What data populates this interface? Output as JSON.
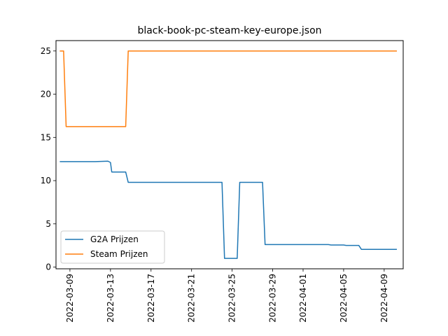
{
  "chart_data": {
    "type": "line",
    "title": "black-book-pc-steam-key-europe.json",
    "xlabel": "",
    "ylabel": "",
    "x_type": "date",
    "xlim": [
      "2022-03-07T15:00",
      "2022-04-10T21:00"
    ],
    "ylim": [
      -0.2,
      26.2
    ],
    "x_ticks": [
      "2022-03-09",
      "2022-03-13",
      "2022-03-17",
      "2022-03-21",
      "2022-03-25",
      "2022-03-29",
      "2022-04-01",
      "2022-04-05",
      "2022-04-09"
    ],
    "y_ticks": [
      0,
      5,
      10,
      15,
      20,
      25
    ],
    "grid": false,
    "legend_position": "lower-left",
    "series": [
      {
        "name": "G2A Prijzen",
        "color": "#1f77b4",
        "points": [
          [
            "2022-03-08T00:00",
            12.2
          ],
          [
            "2022-03-11T12:00",
            12.2
          ],
          [
            "2022-03-12T18:00",
            12.25
          ],
          [
            "2022-03-13T00:00",
            12.1
          ],
          [
            "2022-03-13T03:00",
            11.0
          ],
          [
            "2022-03-14T12:00",
            11.0
          ],
          [
            "2022-03-14T18:00",
            9.8
          ],
          [
            "2022-03-24T00:00",
            9.8
          ],
          [
            "2022-03-24T06:00",
            1.0
          ],
          [
            "2022-03-25T12:00",
            1.0
          ],
          [
            "2022-03-25T18:00",
            9.8
          ],
          [
            "2022-03-28T00:00",
            9.8
          ],
          [
            "2022-03-28T06:00",
            2.6
          ],
          [
            "2022-04-03T12:00",
            2.6
          ],
          [
            "2022-04-03T18:00",
            2.55
          ],
          [
            "2022-04-05T00:00",
            2.55
          ],
          [
            "2022-04-05T06:00",
            2.5
          ],
          [
            "2022-04-06T12:00",
            2.5
          ],
          [
            "2022-04-06T18:00",
            2.05
          ],
          [
            "2022-04-10T06:00",
            2.05
          ]
        ]
      },
      {
        "name": "Steam Prijzen",
        "color": "#ff7f0e",
        "points": [
          [
            "2022-03-08T00:00",
            25.0
          ],
          [
            "2022-03-08T09:00",
            25.0
          ],
          [
            "2022-03-08T15:00",
            16.25
          ],
          [
            "2022-03-14T12:00",
            16.25
          ],
          [
            "2022-03-14T18:00",
            25.0
          ],
          [
            "2022-04-10T06:00",
            25.0
          ]
        ]
      }
    ]
  }
}
